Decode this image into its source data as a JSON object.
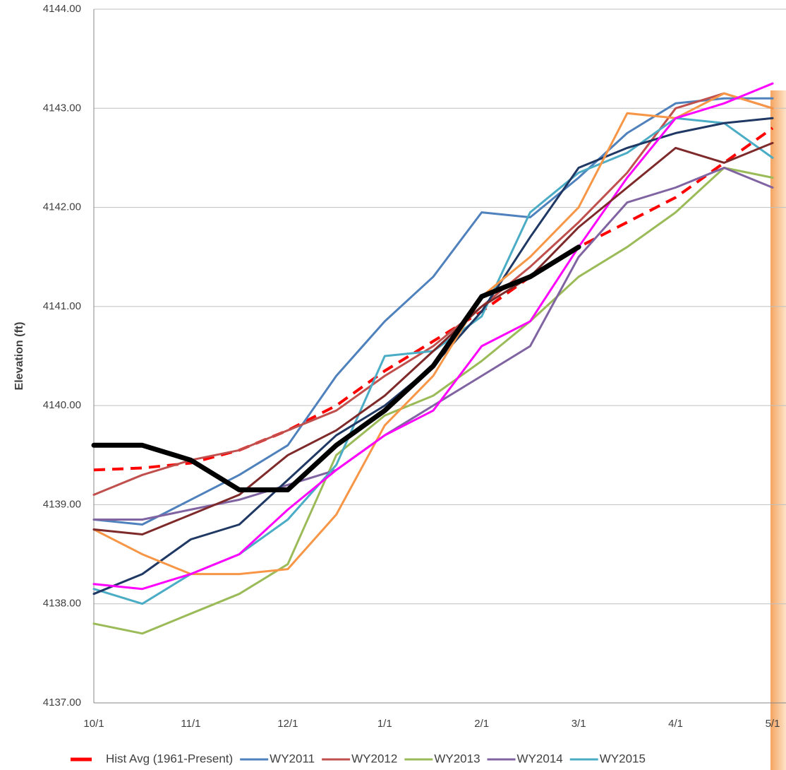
{
  "chart_data": {
    "type": "line",
    "y_label": "Elevation (ft)",
    "categories": [
      "10/1",
      null,
      "11/1",
      null,
      "12/1",
      null,
      "1/1",
      null,
      "2/1",
      null,
      "3/1",
      null,
      "4/1",
      null,
      "5/1"
    ],
    "ylim": [
      4137,
      4144
    ],
    "yticks": [
      {
        "value": 4137,
        "label": "4137.00"
      },
      {
        "value": 4138,
        "label": "4138.00"
      },
      {
        "value": 4139,
        "label": "4139.00"
      },
      {
        "value": 4140,
        "label": "4140.00"
      },
      {
        "value": 4141,
        "label": "4141.00"
      },
      {
        "value": 4142,
        "label": "4142.00"
      },
      {
        "value": 4143,
        "label": "4143.00"
      },
      {
        "value": 4144,
        "label": "4144.00"
      }
    ],
    "grid": true,
    "legend": "bottom",
    "series": [
      {
        "name": "Hist Avg (1961-Present)",
        "color": "#ff0000",
        "dashed": true,
        "values": [
          4139.35,
          4139.37,
          4139.42,
          4139.55,
          4139.75,
          4140.0,
          4140.35,
          4140.65,
          4140.95,
          4141.3,
          4141.6,
          4141.85,
          4142.1,
          4142.45,
          4142.8
        ]
      },
      {
        "name": "WY2011",
        "color": "#4f81bd",
        "values": [
          4138.85,
          4138.8,
          4139.05,
          4139.3,
          4139.6,
          4140.3,
          4140.85,
          4141.3,
          4141.95,
          4141.9,
          4142.3,
          4142.75,
          4143.05,
          4143.1,
          4143.1
        ]
      },
      {
        "name": "WY2012",
        "color": "#c0504d",
        "values": [
          4139.1,
          4139.3,
          4139.45,
          4139.55,
          4139.75,
          4139.95,
          4140.3,
          4140.6,
          4141.0,
          4141.4,
          4141.85,
          4142.35,
          4143.0,
          4143.15,
          4143.0
        ]
      },
      {
        "name": "WY2013",
        "color": "#9bbb59",
        "values": [
          4137.8,
          4137.7,
          4137.9,
          4138.1,
          4138.4,
          4139.5,
          4139.9,
          4140.1,
          4140.45,
          4140.85,
          4141.3,
          4141.6,
          4141.95,
          4142.4,
          4142.3
        ]
      },
      {
        "name": "WY2014",
        "color": "#8064a2",
        "values": [
          4138.85,
          4138.85,
          4138.95,
          4139.05,
          4139.2,
          4139.35,
          4139.7,
          4140.0,
          4140.3,
          4140.6,
          4141.5,
          4142.05,
          4142.2,
          4142.4,
          4142.2
        ]
      },
      {
        "name": "WY2015",
        "color": "#4bacc6",
        "values": [
          4138.15,
          4138.0,
          4138.3,
          4138.5,
          4138.85,
          4139.4,
          4140.5,
          4140.55,
          4140.9,
          4141.95,
          4142.35,
          4142.55,
          4142.9,
          4142.85,
          4142.5
        ]
      },
      {
        "color": "#1f3864",
        "values": [
          4138.1,
          4138.3,
          4138.65,
          4138.8,
          4139.25,
          4139.7,
          4140.0,
          4140.4,
          4140.95,
          4141.7,
          4142.4,
          4142.6,
          4142.75,
          4142.85,
          4142.9
        ]
      },
      {
        "color": "#f79646",
        "values": [
          4138.75,
          4138.5,
          4138.3,
          4138.3,
          4138.35,
          4138.9,
          4139.8,
          4140.3,
          4141.1,
          4141.5,
          4142.0,
          4142.95,
          4142.9,
          4143.15,
          4143.0
        ]
      },
      {
        "color": "#ff00ff",
        "values": [
          4138.2,
          4138.15,
          4138.3,
          4138.5,
          4138.95,
          4139.35,
          4139.7,
          4139.95,
          4140.6,
          4140.85,
          4141.6,
          4142.3,
          4142.9,
          4143.05,
          4143.25
        ]
      },
      {
        "color": "#7f2a2a",
        "values": [
          4138.75,
          4138.7,
          4138.9,
          4139.1,
          4139.5,
          4139.75,
          4140.1,
          4140.55,
          4141.0,
          4141.3,
          4141.8,
          4142.2,
          4142.6,
          4142.45,
          4142.65
        ]
      },
      {
        "color": "#000000",
        "width": 7,
        "values": [
          4139.6,
          4139.6,
          4139.45,
          4139.15,
          4139.15,
          4139.6,
          4139.95,
          4140.4,
          4141.1,
          4141.3,
          4141.6,
          null,
          null,
          null,
          null
        ]
      }
    ]
  }
}
